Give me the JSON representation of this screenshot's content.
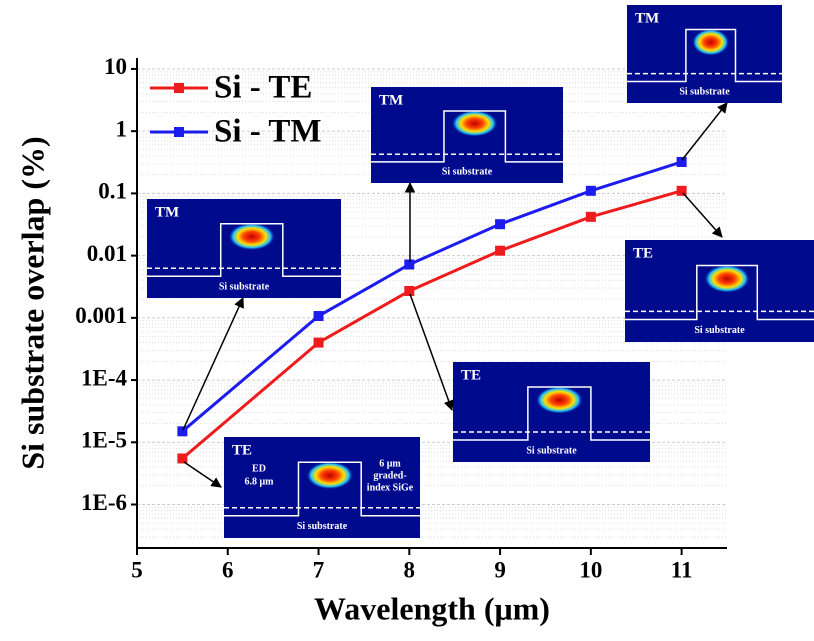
{
  "chart_data": {
    "type": "line",
    "x_label": "Wavelength (μm)",
    "y_label": "Si substrate overlap (%)",
    "x": [
      5.5,
      7,
      8,
      9,
      10,
      11
    ],
    "series": [
      {
        "name": "Si - TE",
        "color": "#ee1c1c",
        "values": [
          5.5e-06,
          0.0004,
          0.0027,
          0.012,
          0.042,
          0.11
        ]
      },
      {
        "name": "Si - TM",
        "color": "#1c1cee",
        "values": [
          1.5e-05,
          0.00107,
          0.0072,
          0.032,
          0.11,
          0.32
        ]
      }
    ],
    "xlim": [
      5,
      11.5
    ],
    "xticks": [
      5,
      6,
      7,
      8,
      9,
      10,
      11
    ],
    "ylim": [
      2e-07,
      15
    ],
    "log_y": true,
    "yticks": [
      {
        "value": 1e-06,
        "label": "1E-6"
      },
      {
        "value": 1e-05,
        "label": "1E-5"
      },
      {
        "value": 0.0001,
        "label": "1E-4"
      },
      0.001,
      0.01,
      0.1,
      1,
      10
    ],
    "grid": true,
    "legend": "upper left",
    "insets": [
      {
        "mode": "TM",
        "substrate": "Si substrate"
      },
      {
        "mode": "TM",
        "substrate": "Si substrate"
      },
      {
        "mode": "TM",
        "substrate": "Si substrate"
      },
      {
        "mode": "TE",
        "substrate": "Si substrate"
      },
      {
        "mode": "TE",
        "substrate": "Si substrate"
      },
      {
        "mode": "TE",
        "substrate": "Si substrate",
        "left_note": [
          "ED",
          "6.8 μm"
        ],
        "right_note": [
          "6 μm",
          "graded-",
          "index SiGe"
        ]
      }
    ]
  }
}
